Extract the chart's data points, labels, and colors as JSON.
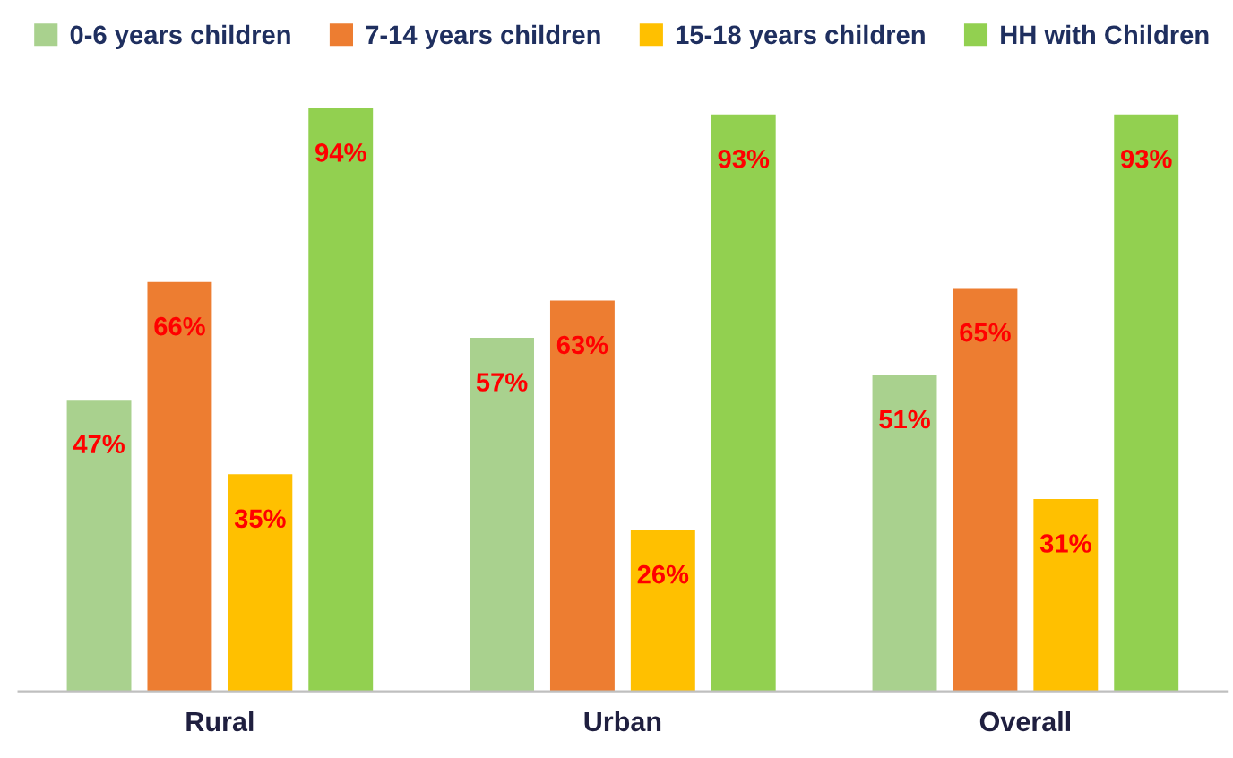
{
  "chart_data": {
    "type": "bar",
    "categories": [
      "Rural",
      "Urban",
      "Overall"
    ],
    "series": [
      {
        "name": "0-6 years children",
        "color": "#a9d18e",
        "values": [
          47,
          57,
          51
        ],
        "value_labels": [
          "47%",
          "57%",
          "51%"
        ]
      },
      {
        "name": "7-14 years children",
        "color": "#ed7d31",
        "values": [
          66,
          63,
          65
        ],
        "value_labels": [
          "66%",
          "63%",
          "65%"
        ]
      },
      {
        "name": "15-18 years children",
        "color": "#ffc000",
        "values": [
          35,
          26,
          31
        ],
        "value_labels": [
          "35%",
          "26%",
          "31%"
        ]
      },
      {
        "name": "HH with Children",
        "color": "#92d050",
        "values": [
          94,
          93,
          93
        ],
        "value_labels": [
          "94%",
          "93%",
          "93%"
        ]
      }
    ],
    "legend": "top",
    "tick_labels": "x"
  }
}
